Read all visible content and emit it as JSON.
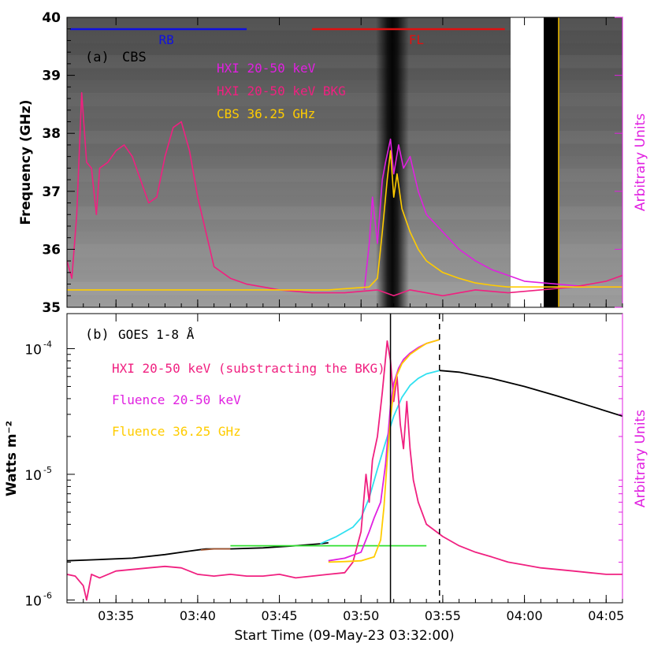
{
  "chart_data": [
    {
      "type": "heatmap",
      "panel_label": "(a)",
      "instrument_label": "CBS",
      "ylabel": "Frequency (GHz)",
      "ylabel_right": "Arbitrary Units",
      "ylim": [
        35,
        40
      ],
      "yticks": [
        "35",
        "36",
        "37",
        "38",
        "39",
        "40"
      ],
      "xlim_minutes": [
        0,
        34
      ],
      "bars": [
        {
          "label": "RB",
          "color": "#1010e0",
          "start": 0.2,
          "end": 11.0
        },
        {
          "label": "FL",
          "color": "#e01010",
          "start": 15.0,
          "end": 26.8
        }
      ],
      "series": [
        {
          "name": "HXI 20-50 keV",
          "color": "#e020e0",
          "x": [
            18.2,
            18.5,
            18.7,
            19.0,
            19.3,
            19.5,
            19.8,
            20.0,
            20.3,
            20.6,
            21.0,
            21.5,
            22.0,
            23.0,
            24.0,
            25.0,
            26.0,
            27.0,
            28.0,
            30.0,
            32.0,
            34.0
          ],
          "y": [
            35.3,
            36.1,
            36.9,
            36.1,
            37.2,
            37.5,
            37.9,
            37.3,
            37.8,
            37.4,
            37.6,
            37.0,
            36.6,
            36.3,
            36.0,
            35.8,
            35.65,
            35.55,
            35.45,
            35.4,
            35.35,
            35.35
          ]
        },
        {
          "name": "HXI 20-50 keV BKG",
          "color": "#f02080",
          "x": [
            0,
            0.3,
            0.6,
            0.9,
            1.2,
            1.5,
            1.8,
            2.0,
            2.5,
            3.0,
            3.5,
            4.0,
            4.5,
            5.0,
            5.5,
            6.0,
            6.5,
            7.0,
            7.5,
            8.0,
            8.5,
            9.0,
            9.5,
            10.0,
            10.5,
            11.0,
            12.0,
            13.0,
            15.0,
            17.0,
            19.0,
            20.0,
            21.0,
            23.0,
            25.0,
            27.0,
            29.0,
            31.0,
            33.0,
            34.0
          ],
          "y": [
            35.8,
            35.5,
            36.6,
            38.7,
            37.5,
            37.4,
            36.6,
            37.4,
            37.5,
            37.7,
            37.8,
            37.6,
            37.2,
            36.8,
            36.9,
            37.6,
            38.1,
            38.2,
            37.7,
            36.9,
            36.3,
            35.7,
            35.6,
            35.5,
            35.45,
            35.4,
            35.35,
            35.3,
            35.25,
            35.25,
            35.3,
            35.2,
            35.3,
            35.2,
            35.3,
            35.25,
            35.3,
            35.35,
            35.45,
            35.55
          ]
        },
        {
          "name": "CBS 36.25 GHz",
          "color": "#ffcc00",
          "x": [
            0,
            2,
            4,
            8,
            12,
            16,
            18.5,
            19.0,
            19.3,
            19.6,
            19.8,
            20.0,
            20.2,
            20.5,
            21.0,
            21.5,
            22.0,
            23.0,
            24.0,
            25.0,
            26.0,
            27.0,
            29.0,
            34.0
          ],
          "y": [
            35.3,
            35.3,
            35.3,
            35.3,
            35.3,
            35.3,
            35.35,
            35.5,
            36.3,
            37.2,
            37.7,
            36.9,
            37.3,
            36.7,
            36.3,
            36.0,
            35.8,
            35.6,
            35.5,
            35.42,
            35.38,
            35.35,
            35.35,
            35.35
          ]
        }
      ]
    },
    {
      "type": "line",
      "panel_label": "(b)",
      "ylabel": "Watts m⁻²",
      "ylabel_right": "Arbitrary Units",
      "xlabel": "Start Time (09-May-23 03:32:00)",
      "yscale": "log",
      "ylim": [
        9.5e-07,
        0.00019
      ],
      "ytick_values": [
        1e-06,
        1e-05,
        0.0001
      ],
      "ytick_labels": [
        {
          "base": "10",
          "exp": "-6"
        },
        {
          "base": "10",
          "exp": "-5"
        },
        {
          "base": "10",
          "exp": "-4"
        }
      ],
      "xlim_minutes": [
        0,
        34
      ],
      "xtick_minutes": [
        3,
        8,
        13,
        18,
        23,
        28,
        33
      ],
      "xtick_labels": [
        "03:35",
        "03:40",
        "03:45",
        "03:50",
        "03:55",
        "04:00",
        "04:05"
      ],
      "vlines": [
        {
          "minute": 19.8,
          "style": "solid"
        },
        {
          "minute": 22.8,
          "style": "dashed"
        }
      ],
      "legend": [
        {
          "text": "GOES 1-8 Å",
          "color": "#000000"
        },
        {
          "text": "HXI 20-50 keV (substracting the BKG)",
          "color": "#f02080"
        },
        {
          "text": "Fluence 20-50 keV",
          "color": "#e020e0"
        },
        {
          "text": "Fluence 36.25 GHz",
          "color": "#ffcc00"
        }
      ],
      "series": [
        {
          "name": "GOES 1-8 Å",
          "color": "#000000",
          "x": [
            0,
            2,
            4,
            6,
            7.5,
            8.5,
            10,
            12,
            14,
            15.5,
            16.0
          ],
          "y": [
            2.05e-06,
            2.1e-06,
            2.15e-06,
            2.3e-06,
            2.45e-06,
            2.55e-06,
            2.55e-06,
            2.6e-06,
            2.7e-06,
            2.8e-06,
            2.85e-06
          ]
        },
        {
          "color": "#000000",
          "x": [
            22.8,
            24,
            26,
            28,
            30,
            32,
            34
          ],
          "y": [
            6.7e-05,
            6.5e-05,
            5.8e-05,
            5e-05,
            4.2e-05,
            3.5e-05,
            2.9e-05
          ]
        },
        {
          "color": "#a0522d",
          "x": [
            8.2,
            9,
            10
          ],
          "y": [
            2.5e-06,
            2.55e-06,
            2.55e-06
          ]
        },
        {
          "color": "#30e030",
          "x": [
            10.0,
            22.0
          ],
          "y": [
            2.7e-06,
            2.7e-06
          ]
        },
        {
          "color": "#30e0f0",
          "x": [
            15.5,
            16.5,
            17.5,
            18.0,
            18.5,
            19.0,
            19.5,
            20.0,
            20.5,
            21.0,
            21.5,
            22.0,
            22.8
          ],
          "y": [
            2.8e-06,
            3.2e-06,
            3.8e-06,
            4.5e-06,
            6.5e-06,
            1.1e-05,
            1.8e-05,
            2.9e-05,
            4.1e-05,
            5.1e-05,
            5.8e-05,
            6.3e-05,
            6.7e-05
          ]
        },
        {
          "name": "HXI 20-50 keV (substracting the BKG)",
          "color": "#f02080",
          "x": [
            0,
            0.5,
            1.0,
            1.2,
            1.5,
            2,
            3,
            4,
            5,
            6,
            7,
            8,
            9,
            10,
            11,
            12,
            13,
            14,
            15,
            16,
            17,
            17.5,
            18,
            18.3,
            18.5,
            18.7,
            19.0,
            19.3,
            19.6,
            19.8,
            20.0,
            20.2,
            20.4,
            20.6,
            20.8,
            21.0,
            21.2,
            21.5,
            22.0,
            23,
            24,
            25,
            26,
            27,
            28,
            29,
            30,
            31,
            32,
            33,
            34
          ],
          "y": [
            1.6e-06,
            1.55e-06,
            1.3e-06,
            1e-06,
            1.6e-06,
            1.5e-06,
            1.7e-06,
            1.75e-06,
            1.8e-06,
            1.85e-06,
            1.8e-06,
            1.6e-06,
            1.55e-06,
            1.6e-06,
            1.55e-06,
            1.55e-06,
            1.6e-06,
            1.5e-06,
            1.55e-06,
            1.6e-06,
            1.65e-06,
            2e-06,
            3.5e-06,
            1e-05,
            6e-06,
            1.3e-05,
            2e-05,
            4.5e-05,
            0.000115,
            8e-05,
            3.8e-05,
            6e-05,
            2.5e-05,
            1.6e-05,
            3.8e-05,
            1.6e-05,
            9e-06,
            6e-06,
            4e-06,
            3.2e-06,
            2.7e-06,
            2.4e-06,
            2.2e-06,
            2e-06,
            1.9e-06,
            1.8e-06,
            1.75e-06,
            1.7e-06,
            1.65e-06,
            1.6e-06,
            1.6e-06
          ]
        },
        {
          "name": "Fluence 20-50 keV",
          "color": "#e020e0",
          "x": [
            16.0,
            17.0,
            18.0,
            18.5,
            18.8,
            19.2,
            19.5,
            19.8,
            20.0,
            20.3,
            20.6,
            21.0,
            21.5,
            22.0,
            22.8
          ],
          "y": [
            2.05e-06,
            2.15e-06,
            2.4e-06,
            3.5e-06,
            4.5e-06,
            6e-06,
            1.2e-05,
            3.5e-05,
            5.3e-05,
            7e-05,
            8.2e-05,
            9.2e-05,
            0.000102,
            0.00011,
            0.000118
          ]
        },
        {
          "name": "Fluence 36.25 GHz",
          "color": "#ffcc00",
          "x": [
            16.0,
            17.0,
            18.0,
            18.8,
            19.2,
            19.4,
            19.6,
            19.8,
            20.0,
            20.2,
            20.5,
            21.0,
            21.5,
            22.0,
            22.8
          ],
          "y": [
            2e-06,
            2.02e-06,
            2.05e-06,
            2.2e-06,
            3e-06,
            5.5e-06,
            1.3e-05,
            2.8e-05,
            4.6e-05,
            6.2e-05,
            7.6e-05,
            9e-05,
            0.0001,
            0.00011,
            0.000118
          ]
        }
      ]
    }
  ]
}
